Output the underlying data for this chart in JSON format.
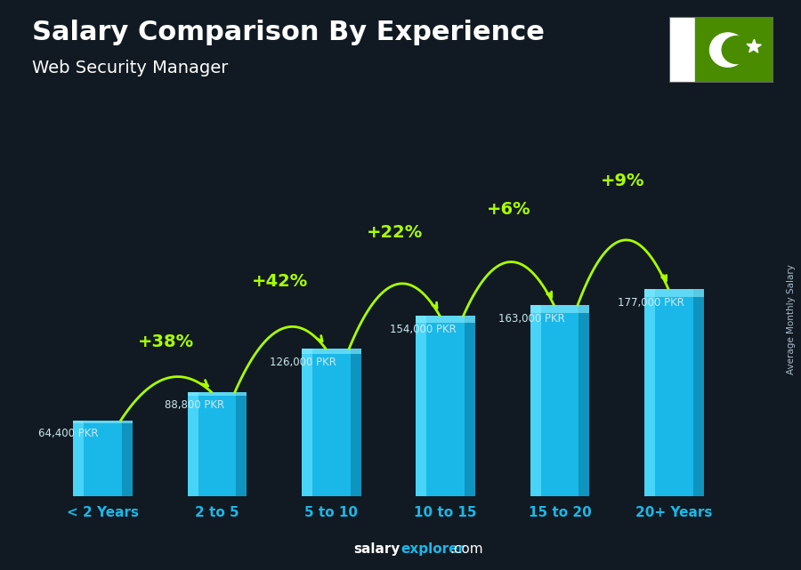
{
  "title": "Salary Comparison By Experience",
  "subtitle": "Web Security Manager",
  "categories": [
    "< 2 Years",
    "2 to 5",
    "5 to 10",
    "10 to 15",
    "15 to 20",
    "20+ Years"
  ],
  "values": [
    64400,
    88800,
    126000,
    154000,
    163000,
    177000
  ],
  "value_labels": [
    "64,400 PKR",
    "88,800 PKR",
    "126,000 PKR",
    "154,000 PKR",
    "163,000 PKR",
    "177,000 PKR"
  ],
  "pct_changes": [
    "+38%",
    "+42%",
    "+22%",
    "+6%",
    "+9%"
  ],
  "bar_color": "#1ab8e8",
  "bar_left_highlight": "#5de0ff",
  "bar_right_shadow": "#0d8ab5",
  "bar_top_highlight": "#8aefff",
  "background_color": "#111a22",
  "text_color": "#ffffff",
  "pct_color": "#aaff00",
  "value_label_color": "#cce8f0",
  "xlabel_color": "#1ab8e8",
  "ylabel_text": "Average Monthly Salary",
  "footer_salary": "salary",
  "footer_explorer": "explorer",
  "footer_com": ".com",
  "flag_green": "#4a8c00",
  "flag_white": "#ffffff"
}
